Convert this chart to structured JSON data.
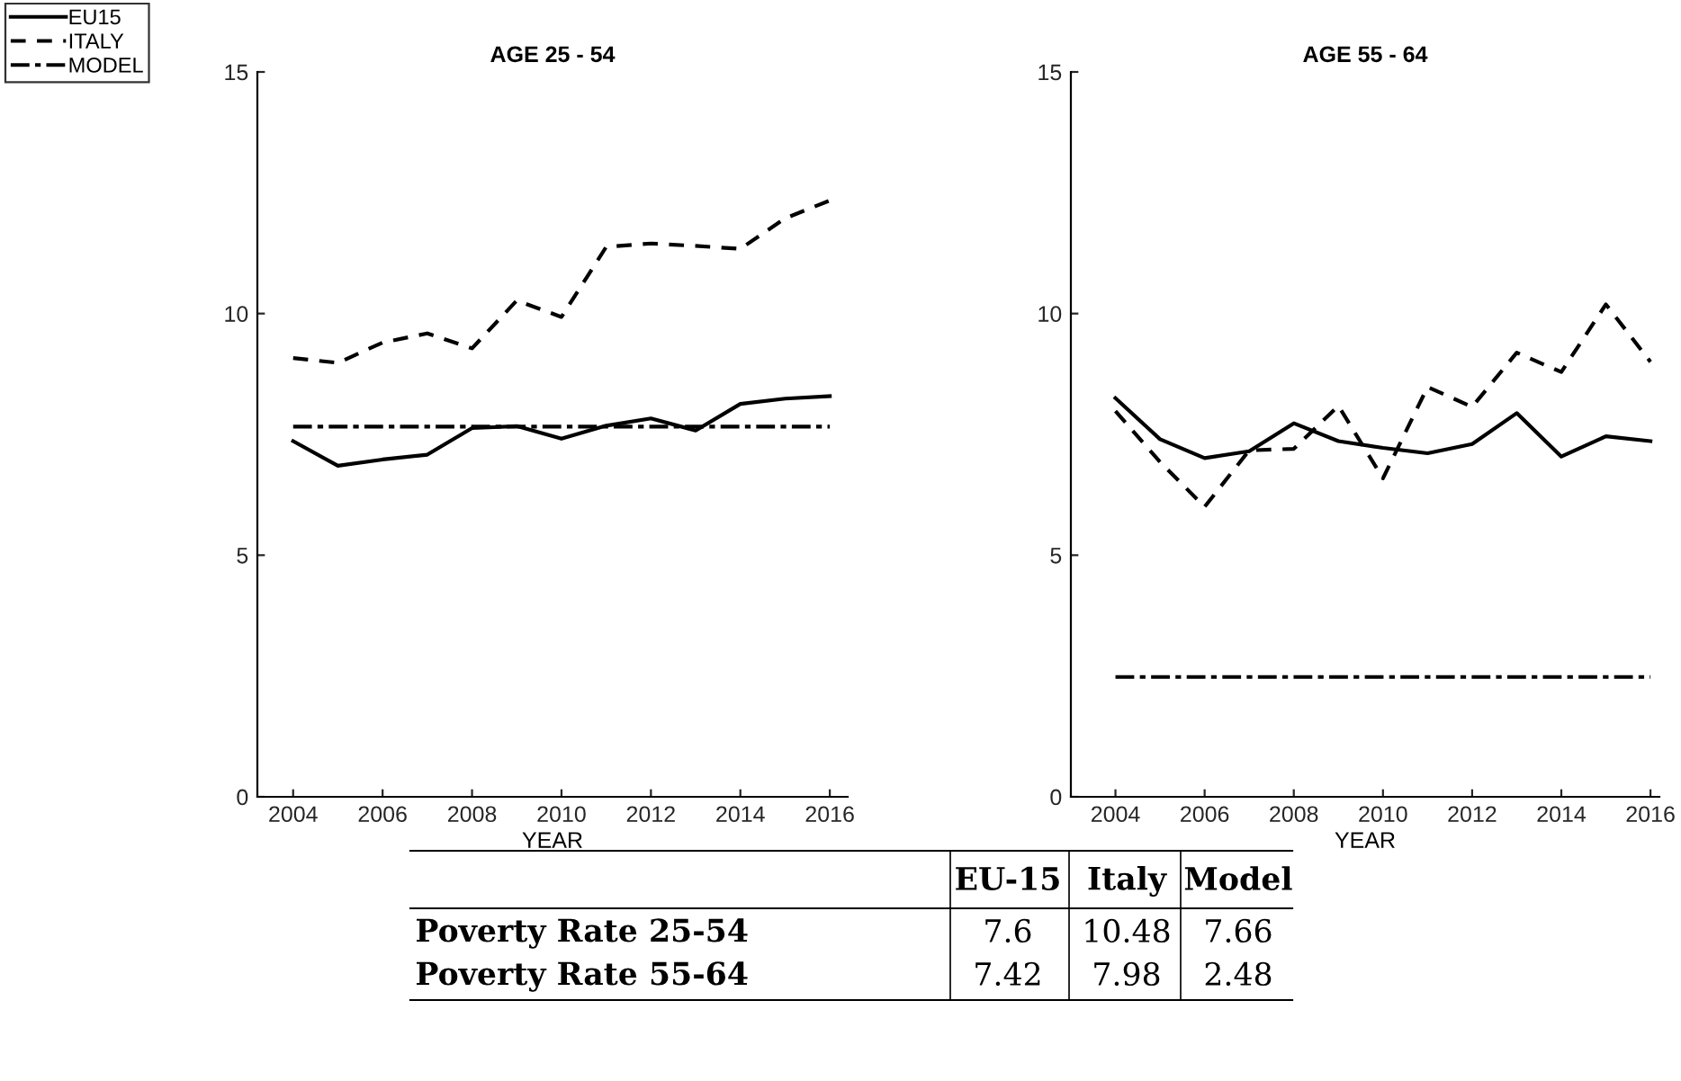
{
  "chart_data": [
    {
      "type": "line",
      "title": "AGE 25 - 54",
      "xlabel": "YEAR",
      "x": [
        2004,
        2005,
        2006,
        2007,
        2008,
        2009,
        2010,
        2011,
        2012,
        2013,
        2014,
        2015,
        2016
      ],
      "xlim": [
        2003.2,
        2016.4
      ],
      "xticks": [
        2004,
        2006,
        2008,
        2010,
        2012,
        2014,
        2016
      ],
      "ylim": [
        0,
        15
      ],
      "yticks": [
        0,
        5,
        10,
        15
      ],
      "grid": false,
      "legend": "top left",
      "series": [
        {
          "name": "EU15",
          "color": "#000000",
          "line_style": "solid",
          "values": [
            7.36,
            6.85,
            6.98,
            7.08,
            7.63,
            7.67,
            7.41,
            7.68,
            7.83,
            7.58,
            8.13,
            8.24,
            8.29
          ]
        },
        {
          "name": "ITALY",
          "color": "#000000",
          "line_style": "dashed",
          "values": [
            9.08,
            8.98,
            9.4,
            9.59,
            9.28,
            10.27,
            9.93,
            11.38,
            11.45,
            11.4,
            11.34,
            11.97,
            12.34
          ]
        },
        {
          "name": "MODEL",
          "color": "#000000",
          "line_style": "dashdot",
          "values": [
            7.66,
            7.66,
            7.66,
            7.66,
            7.66,
            7.66,
            7.66,
            7.66,
            7.66,
            7.66,
            7.66,
            7.66,
            7.66
          ]
        }
      ]
    },
    {
      "type": "line",
      "title": "AGE 55 - 64",
      "xlabel": "YEAR",
      "x": [
        2004,
        2005,
        2006,
        2007,
        2008,
        2009,
        2010,
        2011,
        2012,
        2013,
        2014,
        2015,
        2016
      ],
      "xlim": [
        2003.0,
        2016.2
      ],
      "xticks": [
        2004,
        2006,
        2008,
        2010,
        2012,
        2014,
        2016
      ],
      "ylim": [
        0,
        15
      ],
      "yticks": [
        0,
        5,
        10,
        15
      ],
      "grid": false,
      "series": [
        {
          "color": "#000000",
          "line_style": "solid",
          "values": [
            8.25,
            7.4,
            7.01,
            7.15,
            7.73,
            7.36,
            7.22,
            7.11,
            7.3,
            7.94,
            7.04,
            7.46,
            7.36
          ]
        },
        {
          "color": "#000000",
          "line_style": "dashed",
          "values": [
            7.98,
            6.93,
            6.0,
            7.17,
            7.2,
            8.09,
            6.59,
            8.48,
            8.07,
            9.19,
            8.79,
            10.19,
            9.0
          ]
        },
        {
          "color": "#000000",
          "line_style": "dashdot",
          "values": [
            2.48,
            2.48,
            2.48,
            2.48,
            2.48,
            2.48,
            2.48,
            2.48,
            2.48,
            2.48,
            2.48,
            2.48,
            2.48
          ]
        }
      ]
    },
    {
      "type": "other",
      "annotations": [
        "EU-15",
        "Italy",
        "Model",
        "Poverty Rate 25-54",
        "7.6",
        "10.48",
        "7.66",
        "Poverty Rate 55-64",
        "7.42",
        "7.98",
        "2.48"
      ]
    }
  ]
}
